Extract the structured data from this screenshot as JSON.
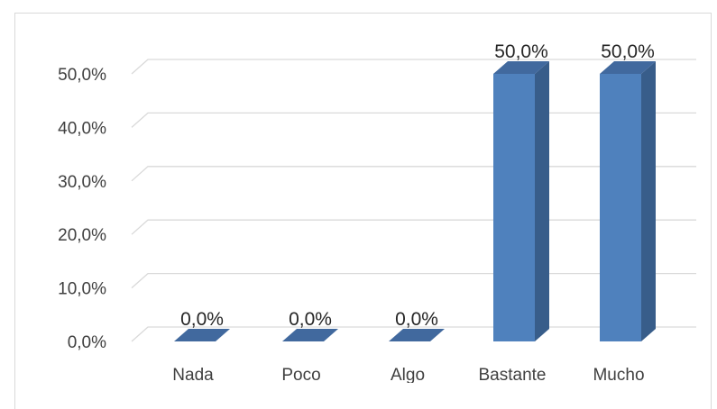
{
  "chart_data": {
    "type": "bar",
    "style": "3d-column",
    "categories": [
      "Nada",
      "Poco",
      "Algo",
      "Bastante",
      "Mucho"
    ],
    "values": [
      0.0,
      0.0,
      0.0,
      50.0,
      50.0
    ],
    "data_labels": [
      "0,0%",
      "0,0%",
      "0,0%",
      "50,0%",
      "50,0%"
    ],
    "y_ticks": [
      "0,0%",
      "10,0%",
      "20,0%",
      "30,0%",
      "40,0%",
      "50,0%"
    ],
    "ylim": [
      0,
      50
    ],
    "grid": true,
    "legend": false,
    "title": "",
    "xlabel": "",
    "ylabel": "",
    "colors": {
      "bar_front": "#4f81bd",
      "bar_side": "#385d8a",
      "bar_top": "#41699e",
      "gridline": "#d9d9d9",
      "text": "#404040"
    }
  }
}
